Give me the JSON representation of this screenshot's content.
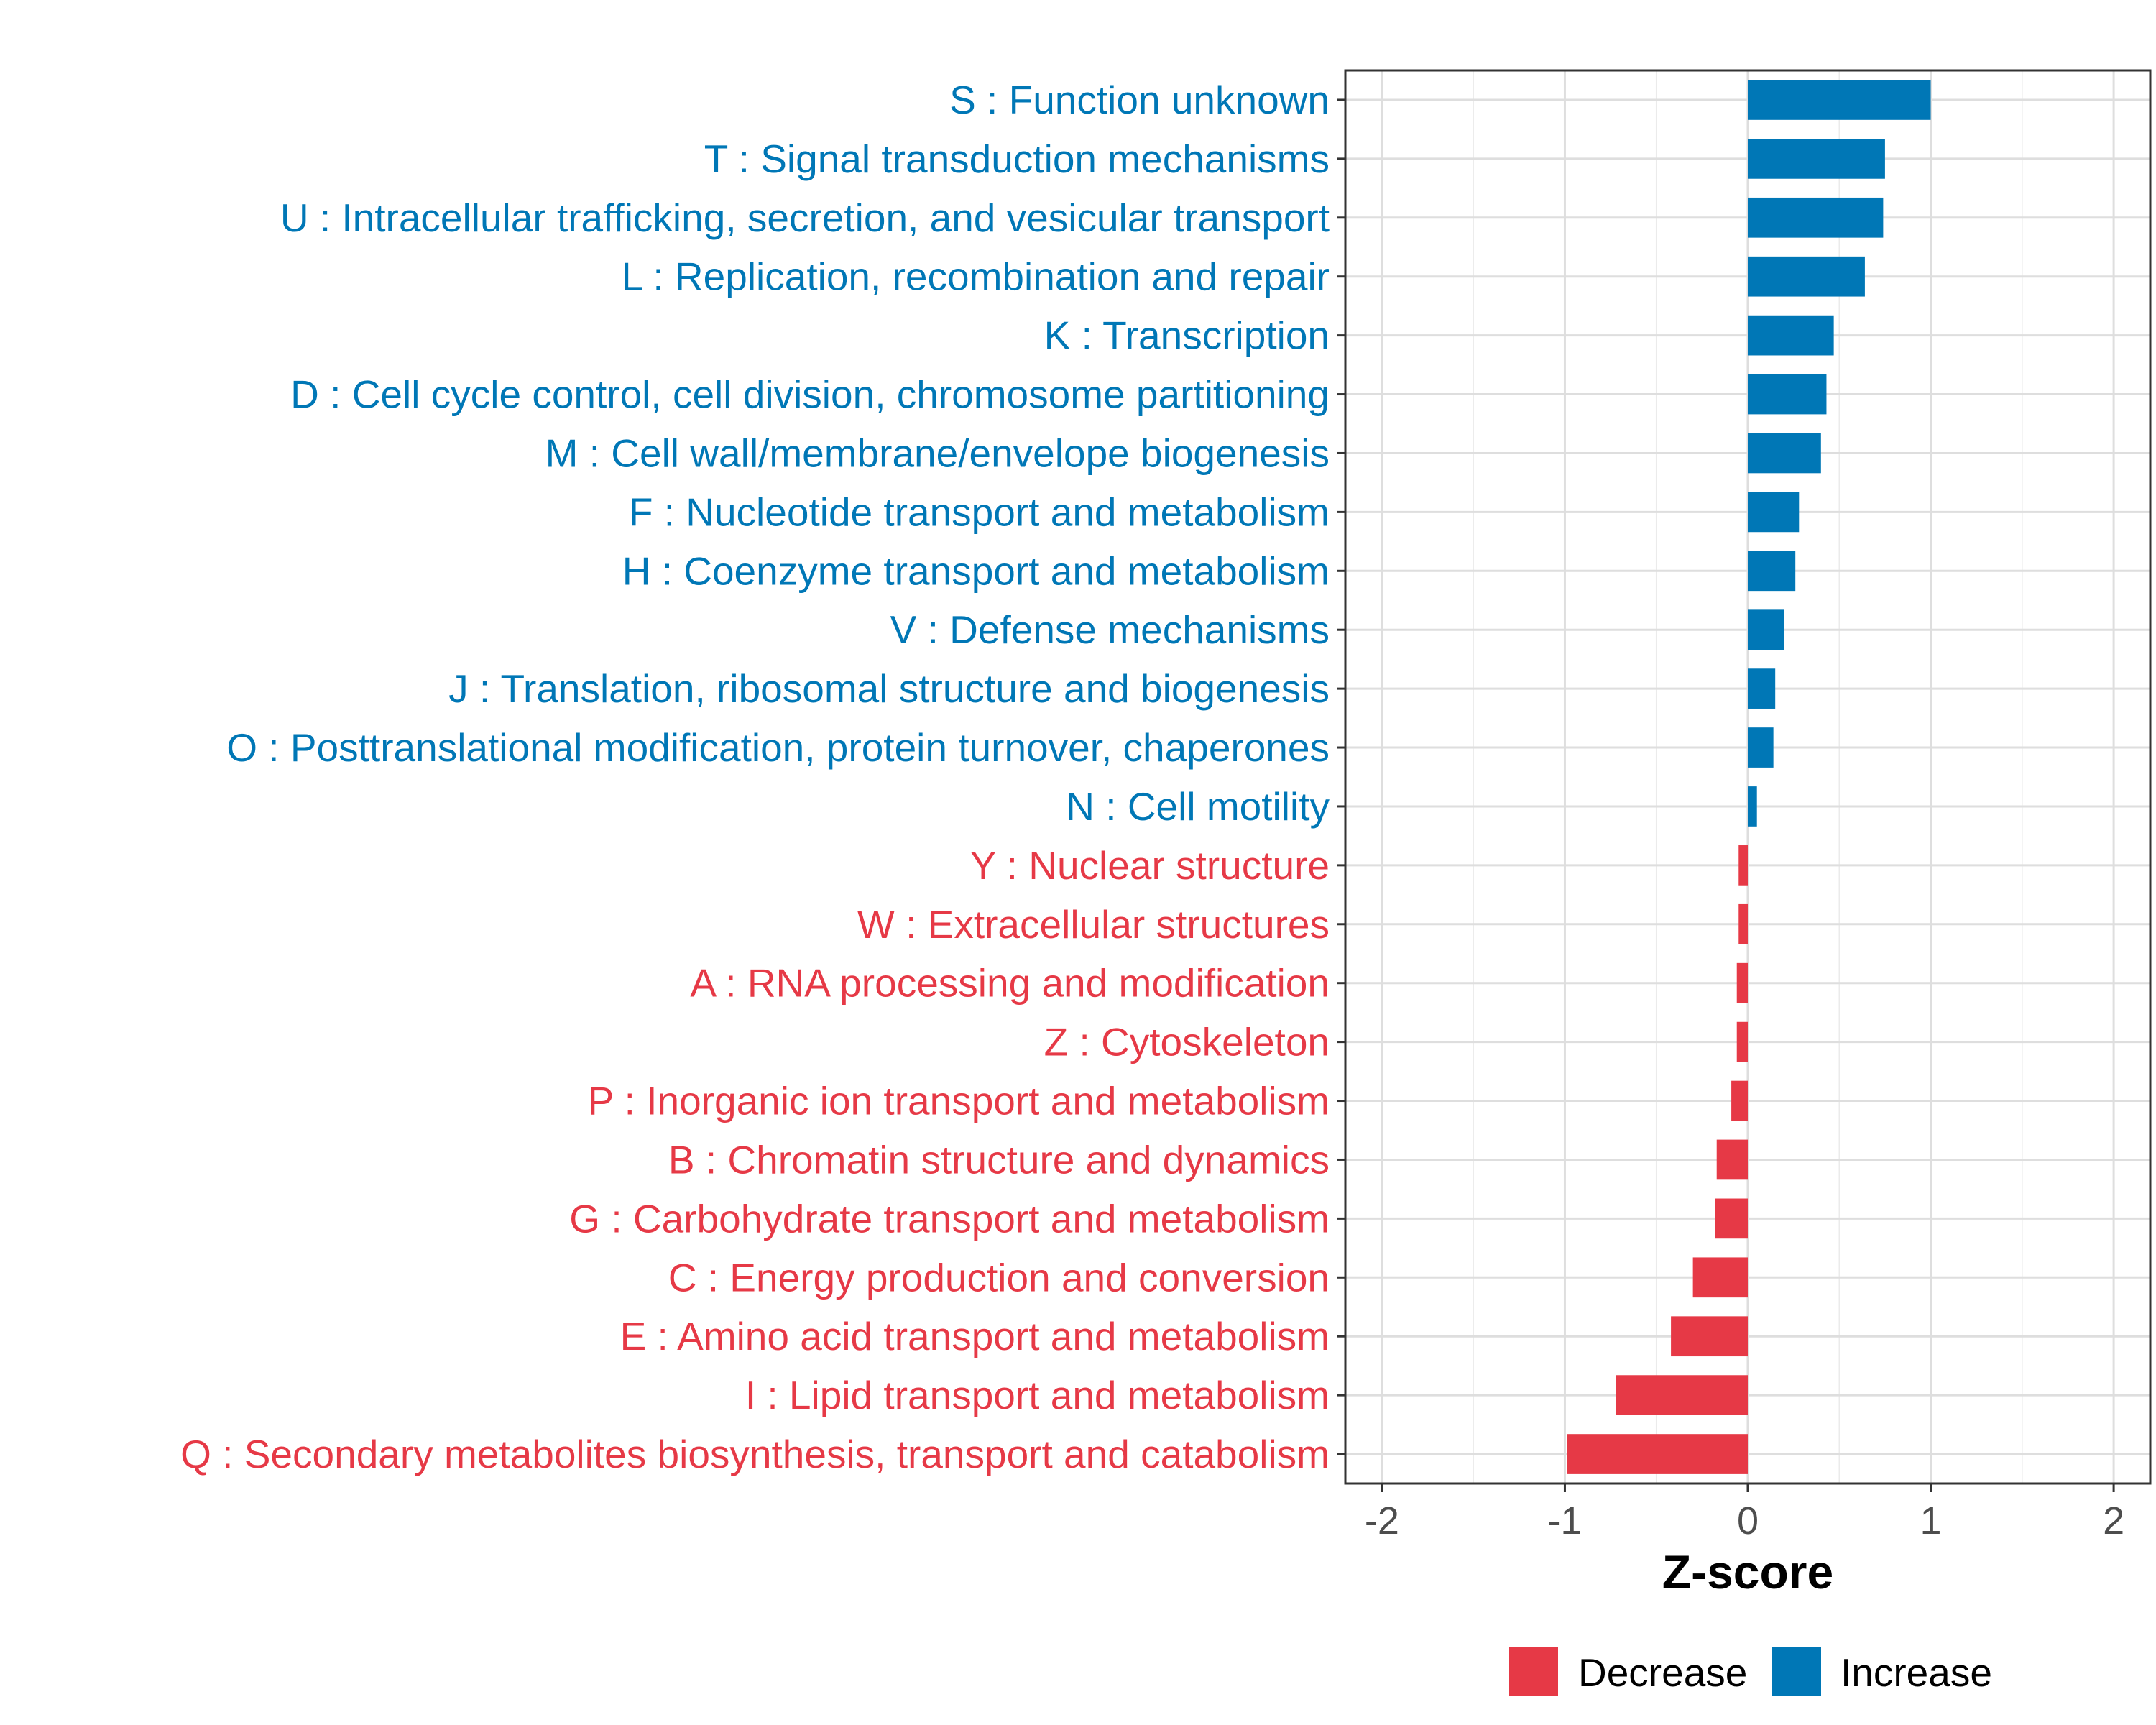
{
  "chart_data": {
    "type": "bar",
    "orientation": "horizontal",
    "title": "",
    "xlabel": "Z-score",
    "ylabel": "",
    "xlim": [
      -2.2,
      2.2
    ],
    "xticks": [
      -2,
      -1,
      0,
      1,
      2
    ],
    "xtick_labels": [
      "-2",
      "-1",
      "0",
      "1",
      "2"
    ],
    "grid": true,
    "colors": {
      "Increase": "#0077b6",
      "Decrease": "#e63946"
    },
    "legend": {
      "placement": "bottom",
      "entries": [
        {
          "label": "Decrease",
          "color": "#e63946"
        },
        {
          "label": "Increase",
          "color": "#0077b6"
        }
      ]
    },
    "categories": [
      "S : Function unknown",
      "T : Signal transduction mechanisms",
      "U : Intracellular trafficking, secretion, and vesicular transport",
      "L : Replication, recombination and repair",
      "K : Transcription",
      "D : Cell cycle control, cell division, chromosome partitioning",
      "M : Cell wall/membrane/envelope biogenesis",
      "F : Nucleotide transport and metabolism",
      "H : Coenzyme transport and metabolism",
      "V : Defense mechanisms",
      "J : Translation, ribosomal structure and biogenesis",
      "O : Posttranslational modification, protein turnover, chaperones",
      "N : Cell motility",
      "Y : Nuclear structure",
      "W : Extracellular structures",
      "A : RNA processing and modification",
      "Z : Cytoskeleton",
      "P : Inorganic ion transport and metabolism",
      "B : Chromatin structure and dynamics",
      "G : Carbohydrate transport and metabolism",
      "C : Energy production and conversion",
      "E : Amino acid transport and metabolism",
      "I : Lipid transport and metabolism",
      "Q : Secondary metabolites biosynthesis, transport and catabolism"
    ],
    "values": [
      1.0,
      0.75,
      0.74,
      0.64,
      0.47,
      0.43,
      0.4,
      0.28,
      0.26,
      0.2,
      0.15,
      0.14,
      0.05,
      -0.05,
      -0.05,
      -0.06,
      -0.06,
      -0.09,
      -0.17,
      -0.18,
      -0.3,
      -0.42,
      -0.72,
      -0.99
    ],
    "groups": [
      "Increase",
      "Increase",
      "Increase",
      "Increase",
      "Increase",
      "Increase",
      "Increase",
      "Increase",
      "Increase",
      "Increase",
      "Increase",
      "Increase",
      "Increase",
      "Decrease",
      "Decrease",
      "Decrease",
      "Decrease",
      "Decrease",
      "Decrease",
      "Decrease",
      "Decrease",
      "Decrease",
      "Decrease",
      "Decrease"
    ]
  }
}
